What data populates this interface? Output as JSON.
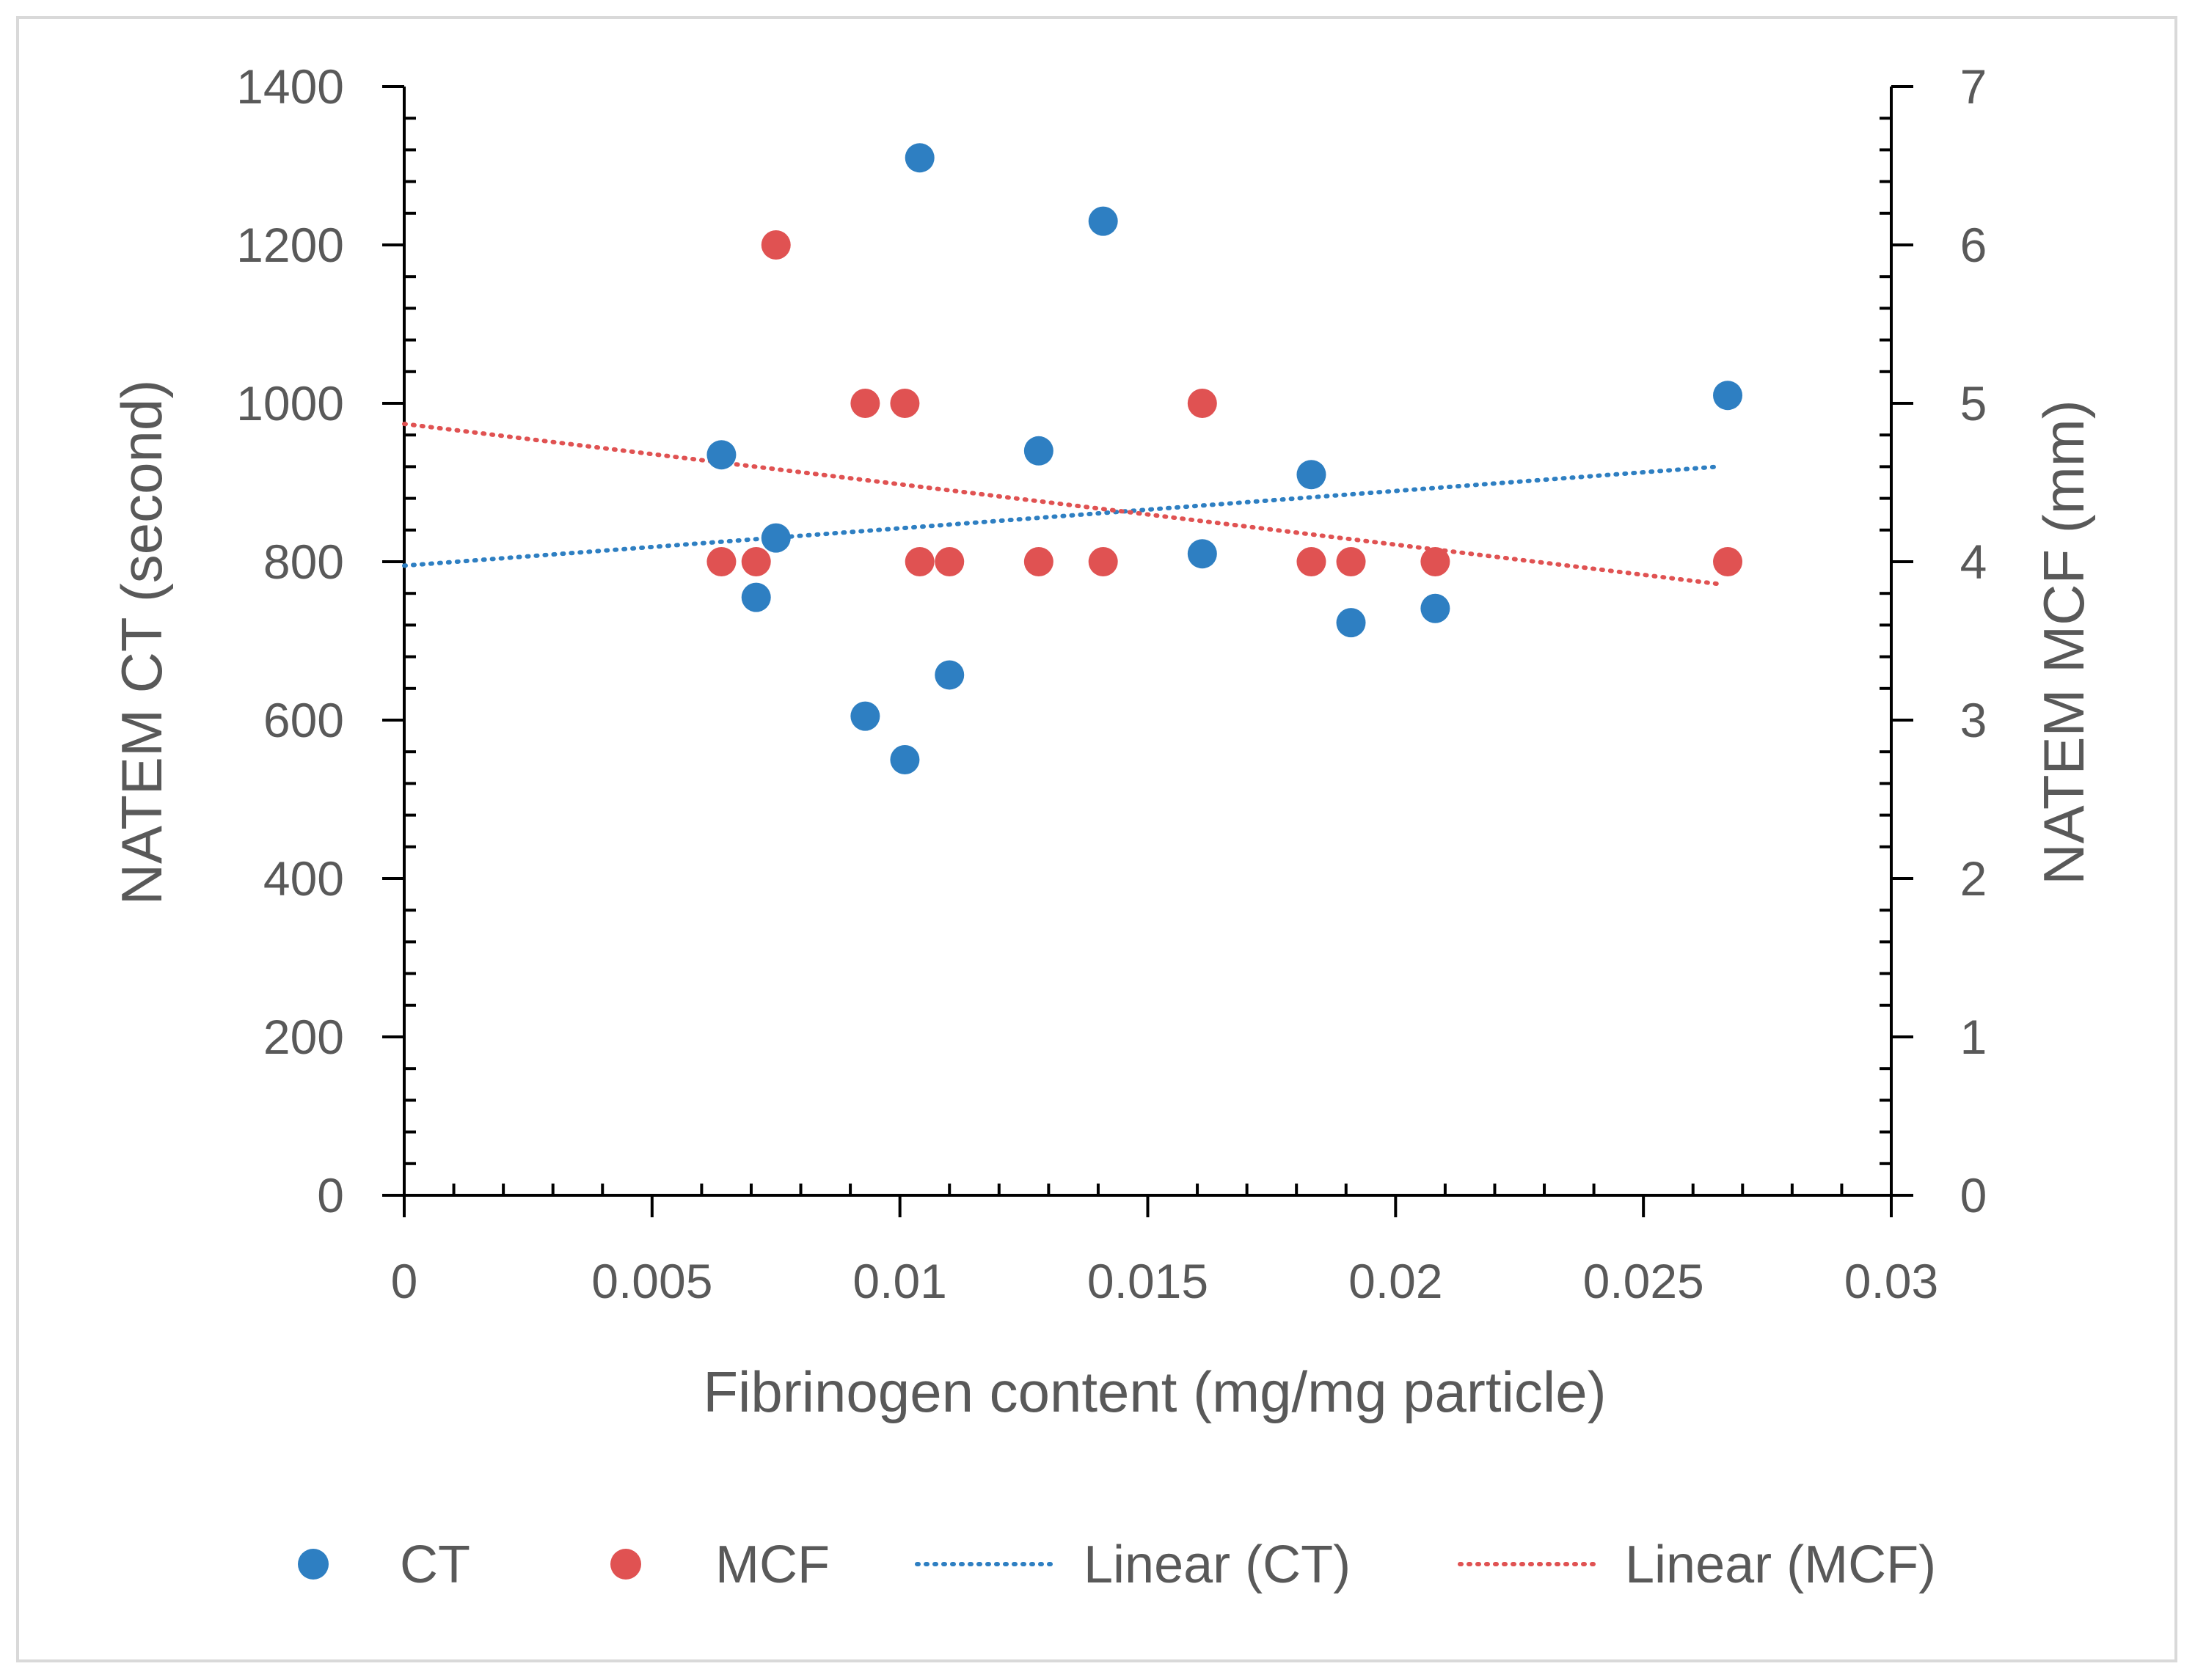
{
  "chart_data": {
    "type": "scatter",
    "xlabel": "Fibrinogen content (mg/mg particle)",
    "ylabel_left": "NATEM CT (second)",
    "ylabel_right": "NATEM MCF (mm)",
    "xlim": [
      0,
      0.03
    ],
    "x_ticks": [
      0,
      0.005,
      0.01,
      0.015,
      0.02,
      0.025,
      0.03
    ],
    "x_tick_labels": [
      "0",
      "0.005",
      "0.01",
      "0.015",
      "0.02",
      "0.025",
      "0.03"
    ],
    "ylim_left": [
      0,
      1400
    ],
    "y_left_ticks": [
      0,
      200,
      400,
      600,
      800,
      1000,
      1200,
      1400
    ],
    "y_left_tick_labels": [
      "0",
      "200",
      "400",
      "600",
      "800",
      "1000",
      "1200",
      "1400"
    ],
    "ylim_right": [
      0,
      7
    ],
    "y_right_ticks": [
      0,
      1,
      2,
      3,
      4,
      5,
      6,
      7
    ],
    "y_right_tick_labels": [
      "0",
      "1",
      "2",
      "3",
      "4",
      "5",
      "6",
      "7"
    ],
    "legend_position": "bottom",
    "series": [
      {
        "name": "CT",
        "axis": "left",
        "color": "#2e7fc2",
        "marker": "circle",
        "x": [
          0.0064,
          0.0071,
          0.0075,
          0.0093,
          0.0101,
          0.0104,
          0.011,
          0.0128,
          0.0141,
          0.0161,
          0.0183,
          0.0191,
          0.0208,
          0.0267
        ],
        "y": [
          935,
          755,
          830,
          605,
          550,
          1310,
          657,
          940,
          1230,
          810,
          910,
          723,
          741,
          1010
        ]
      },
      {
        "name": "MCF",
        "axis": "right",
        "color": "#e05252",
        "marker": "circle",
        "x": [
          0.0064,
          0.0071,
          0.0075,
          0.0093,
          0.0101,
          0.0104,
          0.011,
          0.0128,
          0.0141,
          0.0161,
          0.0183,
          0.0191,
          0.0208,
          0.0267
        ],
        "y": [
          4,
          4,
          6,
          5,
          5,
          4,
          4,
          4,
          4,
          5,
          4,
          4,
          4,
          4
        ]
      },
      {
        "name": "Linear (CT)",
        "axis": "left",
        "color": "#2e7fc2",
        "style": "dotted-line",
        "x": [
          0,
          0.0265
        ],
        "y": [
          795,
          920
        ]
      },
      {
        "name": "Linear (MCF)",
        "axis": "right",
        "color": "#e05252",
        "style": "dotted-line",
        "x": [
          0,
          0.0265
        ],
        "y": [
          4.87,
          3.86
        ]
      }
    ]
  }
}
